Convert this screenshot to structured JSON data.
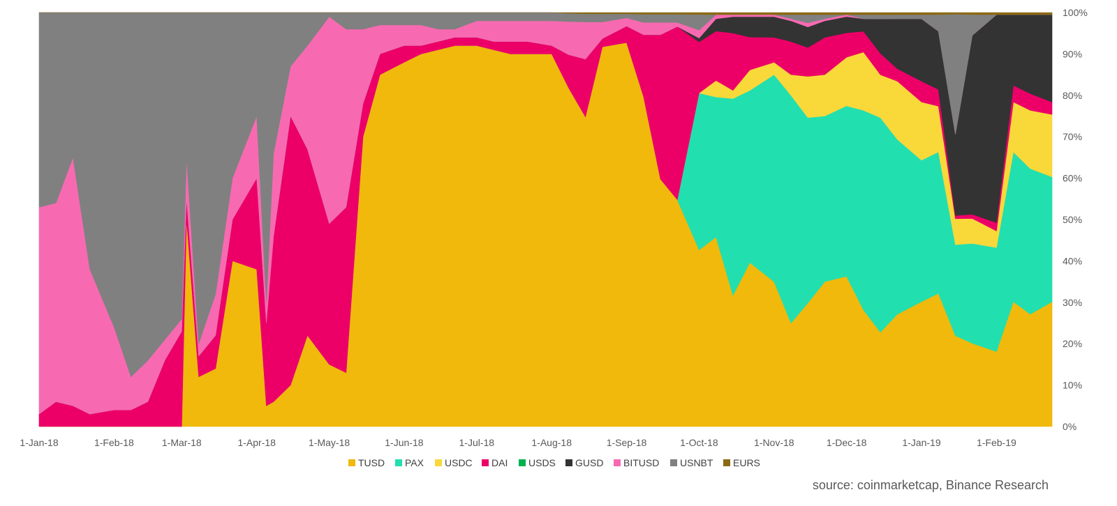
{
  "chart_data": {
    "type": "area",
    "stacked": "percent",
    "x_start": "1-Jan-18",
    "x_end": "24-Feb-19",
    "x_tick_labels": [
      "1-Jan-18",
      "1-Feb-18",
      "1-Mar-18",
      "1-Apr-18",
      "1-May-18",
      "1-Jun-18",
      "1-Jul-18",
      "1-Aug-18",
      "1-Sep-18",
      "1-Oct-18",
      "1-Nov-18",
      "1-Dec-18",
      "1-Jan-19",
      "1-Feb-19"
    ],
    "y_tick_labels": [
      "0%",
      "10%",
      "20%",
      "30%",
      "40%",
      "50%",
      "60%",
      "70%",
      "80%",
      "90%",
      "100%"
    ],
    "ylim": [
      0,
      100
    ],
    "legend_position": "bottom",
    "dates": [
      "1-Jan-18",
      "8-Jan-18",
      "15-Jan-18",
      "22-Jan-18",
      "1-Feb-18",
      "8-Feb-18",
      "15-Feb-18",
      "22-Feb-18",
      "1-Mar-18",
      "3-Mar-18",
      "8-Mar-18",
      "15-Mar-18",
      "22-Mar-18",
      "1-Apr-18",
      "5-Apr-18",
      "8-Apr-18",
      "15-Apr-18",
      "22-Apr-18",
      "1-May-18",
      "8-May-18",
      "15-May-18",
      "22-May-18",
      "1-Jun-18",
      "8-Jun-18",
      "15-Jun-18",
      "22-Jun-18",
      "1-Jul-18",
      "8-Jul-18",
      "15-Jul-18",
      "22-Jul-18",
      "1-Aug-18",
      "8-Aug-18",
      "15-Aug-18",
      "22-Aug-18",
      "1-Sep-18",
      "8-Sep-18",
      "15-Sep-18",
      "22-Sep-18",
      "1-Oct-18",
      "8-Oct-18",
      "15-Oct-18",
      "22-Oct-18",
      "1-Nov-18",
      "8-Nov-18",
      "15-Nov-18",
      "22-Nov-18",
      "1-Dec-18",
      "8-Dec-18",
      "15-Dec-18",
      "22-Dec-18",
      "1-Jan-19",
      "8-Jan-19",
      "15-Jan-19",
      "22-Jan-19",
      "1-Feb-19",
      "8-Feb-19",
      "15-Feb-19",
      "24-Feb-19"
    ],
    "series": [
      {
        "name": "TUSD",
        "color": "#F0B90B",
        "values": [
          0,
          0,
          0,
          0,
          0,
          0,
          0,
          0,
          0,
          50,
          12,
          14,
          40,
          38,
          5,
          6,
          10,
          22,
          15,
          13,
          70,
          85,
          88,
          90,
          91,
          92,
          92,
          91,
          90,
          90,
          90,
          82,
          75,
          92,
          93,
          80,
          60,
          55,
          45,
          46,
          32,
          40,
          35,
          25,
          30,
          35,
          37,
          28,
          22,
          27,
          30,
          32,
          28,
          20,
          18,
          30,
          27,
          30
        ]
      },
      {
        "name": "PAX",
        "color": "#22DFAF",
        "values": [
          0,
          0,
          0,
          0,
          0,
          0,
          0,
          0,
          0,
          0,
          0,
          0,
          0,
          0,
          0,
          0,
          0,
          0,
          0,
          0,
          0,
          0,
          0,
          0,
          0,
          0,
          0,
          0,
          0,
          0,
          0,
          0,
          0,
          0,
          0,
          0,
          0,
          0,
          40,
          34,
          48,
          42,
          50,
          55,
          45,
          40,
          42,
          48,
          50,
          42,
          34,
          34,
          28,
          24,
          25,
          36,
          35,
          30
        ]
      },
      {
        "name": "USDC",
        "color": "#F9D83A",
        "values": [
          0,
          0,
          0,
          0,
          0,
          0,
          0,
          0,
          0,
          0,
          0,
          0,
          0,
          0,
          0,
          0,
          0,
          0,
          0,
          0,
          0,
          0,
          0,
          0,
          0,
          0,
          0,
          0,
          0,
          0,
          0,
          0,
          0,
          0,
          0,
          0,
          0,
          0,
          0,
          4,
          2,
          5,
          3,
          5,
          10,
          10,
          12,
          14,
          10,
          14,
          14,
          11,
          8,
          6,
          4,
          12,
          14,
          15
        ]
      },
      {
        "name": "DAI",
        "color": "#EC0068",
        "values": [
          3,
          6,
          5,
          3,
          4,
          4,
          6,
          16,
          23,
          5,
          5,
          8,
          10,
          22,
          20,
          40,
          65,
          45,
          34,
          40,
          8,
          5,
          4,
          2,
          2,
          2,
          2,
          2,
          3,
          3,
          2,
          8,
          14,
          2,
          4,
          15,
          35,
          42,
          13,
          12,
          14,
          8,
          6,
          8,
          7,
          9,
          6,
          5,
          5,
          3,
          5,
          4,
          1,
          1,
          2,
          4,
          4,
          3
        ]
      },
      {
        "name": "USDS",
        "color": "#00B050",
        "values": [
          0,
          0,
          0,
          0,
          0,
          0,
          0,
          0,
          0,
          0,
          0,
          0,
          0,
          0,
          0,
          0,
          0,
          0,
          0,
          0,
          0,
          0,
          0,
          0,
          0,
          0,
          0,
          0,
          0,
          0,
          0,
          0,
          0,
          0,
          0,
          0,
          0,
          0,
          0,
          0,
          0,
          0,
          0,
          0,
          0,
          0,
          0,
          0,
          0,
          0,
          0,
          0,
          0,
          0,
          0,
          0,
          0,
          0
        ]
      },
      {
        "name": "GUSD",
        "color": "#333333",
        "values": [
          0,
          0,
          0,
          0,
          0,
          0,
          0,
          0,
          0,
          0,
          0,
          0,
          0,
          0,
          0,
          0,
          0,
          0,
          0,
          0,
          0,
          0,
          0,
          0,
          0,
          0,
          0,
          0,
          0,
          0,
          0,
          0,
          0,
          0,
          0,
          0,
          0,
          0,
          1,
          3,
          4,
          5,
          5,
          5,
          5,
          4,
          4,
          3,
          8,
          12,
          15,
          14,
          25,
          43,
          50,
          17,
          19,
          21
        ]
      },
      {
        "name": "BITUSD",
        "color": "#F76AB1",
        "values": [
          50,
          48,
          60,
          35,
          20,
          8,
          10,
          5,
          3,
          10,
          3,
          10,
          10,
          15,
          5,
          20,
          12,
          25,
          50,
          43,
          18,
          7,
          5,
          5,
          3,
          2,
          4,
          5,
          5,
          5,
          6,
          8,
          9,
          4,
          2,
          3,
          3,
          1,
          2,
          1,
          0.5,
          0.5,
          0.5,
          0.5,
          1,
          0.5,
          0.5,
          0,
          0,
          0,
          0,
          0,
          0,
          0,
          0,
          0,
          0,
          0
        ]
      },
      {
        "name": "USNBT",
        "color": "#808080",
        "values": [
          47,
          46,
          35,
          62,
          76,
          88,
          84,
          79,
          74,
          35,
          80,
          68,
          40,
          25,
          70,
          34,
          13,
          8,
          1,
          4,
          4,
          3,
          3,
          3,
          4,
          4,
          2,
          2,
          2,
          2,
          2,
          2,
          2,
          2,
          1,
          2,
          2,
          2,
          4,
          0,
          0,
          0,
          0,
          1,
          2,
          1,
          0,
          1,
          1,
          1,
          1,
          4,
          37,
          5,
          0,
          0,
          0,
          0
        ]
      },
      {
        "name": "EURS",
        "color": "#8B6A14",
        "values": [
          0,
          0,
          0,
          0,
          0,
          0,
          0,
          0,
          0,
          0,
          0,
          0,
          0,
          0,
          0,
          0,
          0,
          0,
          0,
          0,
          0,
          0,
          0,
          0,
          0,
          0,
          0,
          0,
          0,
          0,
          0,
          0.2,
          0.3,
          0.3,
          0.3,
          0.4,
          0.4,
          0.4,
          0.5,
          0.5,
          0.5,
          0.5,
          0.5,
          0.5,
          0.5,
          0.5,
          0.5,
          0.5,
          0.5,
          0.5,
          0.5,
          0.5,
          0.5,
          0.5,
          0.5,
          0.5,
          0.5,
          0.5
        ]
      }
    ]
  },
  "source_text": "source: coinmarketcap, Binance Research"
}
